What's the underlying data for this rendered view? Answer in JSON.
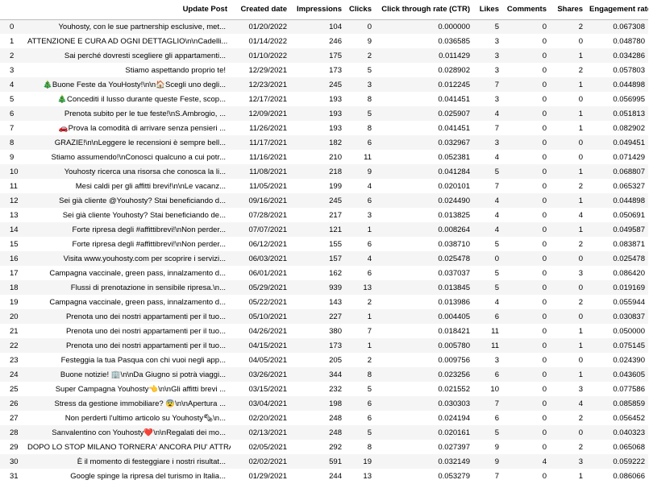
{
  "table": {
    "columns": [
      "",
      "Update Post",
      "Created date",
      "Impressions",
      "Clicks",
      "Click through rate (CTR)",
      "Likes",
      "Comments",
      "Shares",
      "Engagement rate"
    ],
    "rows": [
      [
        "0",
        "Youhosty, con le sue partnership esclusive, met...",
        "01/20/2022",
        "104",
        "0",
        "0.000000",
        "5",
        "0",
        "2",
        "0.067308"
      ],
      [
        "1",
        "ATTENZIONE E CURA AD OGNI DETTAGLIO\\n\\nCadelli...",
        "01/14/2022",
        "246",
        "9",
        "0.036585",
        "3",
        "0",
        "0",
        "0.048780"
      ],
      [
        "2",
        "Sai perché dovresti scegliere gli appartamenti...",
        "01/10/2022",
        "175",
        "2",
        "0.011429",
        "3",
        "0",
        "1",
        "0.034286"
      ],
      [
        "3",
        "Stiamo aspettando proprio te!",
        "12/29/2021",
        "173",
        "5",
        "0.028902",
        "3",
        "0",
        "2",
        "0.057803"
      ],
      [
        "4",
        "🎄Buone Feste da YouHosty!\\n\\n🏠Scegli uno degli...",
        "12/23/2021",
        "245",
        "3",
        "0.012245",
        "7",
        "0",
        "1",
        "0.044898"
      ],
      [
        "5",
        "🎄Concediti il lusso durante queste Feste, scop...",
        "12/17/2021",
        "193",
        "8",
        "0.041451",
        "3",
        "0",
        "0",
        "0.056995"
      ],
      [
        "6",
        "Prenota subito per le tue feste!\\nS.Ambrogio, ...",
        "12/09/2021",
        "193",
        "5",
        "0.025907",
        "4",
        "0",
        "1",
        "0.051813"
      ],
      [
        "7",
        "🚗Prova la comodità di arrivare senza pensieri ...",
        "11/26/2021",
        "193",
        "8",
        "0.041451",
        "7",
        "0",
        "1",
        "0.082902"
      ],
      [
        "8",
        "GRAZIE!\\n\\nLeggere le recensioni è sempre bell...",
        "11/17/2021",
        "182",
        "6",
        "0.032967",
        "3",
        "0",
        "0",
        "0.049451"
      ],
      [
        "9",
        "Stiamo assumendo!\\nConosci qualcuno a cui potr...",
        "11/16/2021",
        "210",
        "11",
        "0.052381",
        "4",
        "0",
        "0",
        "0.071429"
      ],
      [
        "10",
        "Youhosty ricerca una risorsa che conosca la li...",
        "11/08/2021",
        "218",
        "9",
        "0.041284",
        "5",
        "0",
        "1",
        "0.068807"
      ],
      [
        "11",
        "Mesi caldi per gli affitti brevi!\\n\\nLe vacanz...",
        "11/05/2021",
        "199",
        "4",
        "0.020101",
        "7",
        "0",
        "2",
        "0.065327"
      ],
      [
        "12",
        "Sei già cliente @Youhosty? Stai beneficiando d...",
        "09/16/2021",
        "245",
        "6",
        "0.024490",
        "4",
        "0",
        "1",
        "0.044898"
      ],
      [
        "13",
        "Sei già cliente Youhosty? Stai beneficiando de...",
        "07/28/2021",
        "217",
        "3",
        "0.013825",
        "4",
        "0",
        "4",
        "0.050691"
      ],
      [
        "14",
        "Forte ripresa degli #affittibrevi!\\nNon perder...",
        "07/07/2021",
        "121",
        "1",
        "0.008264",
        "4",
        "0",
        "1",
        "0.049587"
      ],
      [
        "15",
        "Forte ripresa degli #affittibrevi!\\nNon perder...",
        "06/12/2021",
        "155",
        "6",
        "0.038710",
        "5",
        "0",
        "2",
        "0.083871"
      ],
      [
        "16",
        "Visita www.youhosty.com per scoprire i servizi...",
        "06/03/2021",
        "157",
        "4",
        "0.025478",
        "0",
        "0",
        "0",
        "0.025478"
      ],
      [
        "17",
        "Campagna vaccinale, green pass, innalzamento d...",
        "06/01/2021",
        "162",
        "6",
        "0.037037",
        "5",
        "0",
        "3",
        "0.086420"
      ],
      [
        "18",
        "Flussi di prenotazione in sensibile ripresa.\\n...",
        "05/29/2021",
        "939",
        "13",
        "0.013845",
        "5",
        "0",
        "0",
        "0.019169"
      ],
      [
        "19",
        "Campagna vaccinale, green pass, innalzamento d...",
        "05/22/2021",
        "143",
        "2",
        "0.013986",
        "4",
        "0",
        "2",
        "0.055944"
      ],
      [
        "20",
        "Prenota uno dei nostri appartamenti per il tuo...",
        "05/10/2021",
        "227",
        "1",
        "0.004405",
        "6",
        "0",
        "0",
        "0.030837"
      ],
      [
        "21",
        "Prenota uno dei nostri appartamenti per il tuo...",
        "04/26/2021",
        "380",
        "7",
        "0.018421",
        "11",
        "0",
        "1",
        "0.050000"
      ],
      [
        "22",
        "Prenota uno dei nostri appartamenti per il tuo...",
        "04/15/2021",
        "173",
        "1",
        "0.005780",
        "11",
        "0",
        "1",
        "0.075145"
      ],
      [
        "23",
        "Festeggia la tua Pasqua con chi vuoi negli app...",
        "04/05/2021",
        "205",
        "2",
        "0.009756",
        "3",
        "0",
        "0",
        "0.024390"
      ],
      [
        "24",
        "Buone notizie! 🏢\\n\\nDa Giugno si potrà viaggi...",
        "03/26/2021",
        "344",
        "8",
        "0.023256",
        "6",
        "0",
        "1",
        "0.043605"
      ],
      [
        "25",
        "Super Campagna Youhosty👈\\n\\nGli affitti brevi ...",
        "03/15/2021",
        "232",
        "5",
        "0.021552",
        "10",
        "0",
        "3",
        "0.077586"
      ],
      [
        "26",
        "Stress da gestione immobiliare? 😨\\n\\nApertura ...",
        "03/04/2021",
        "198",
        "6",
        "0.030303",
        "7",
        "0",
        "4",
        "0.085859"
      ],
      [
        "27",
        "Non perderti l'ultimo articolo su Youhosty🗞\\n...",
        "02/20/2021",
        "248",
        "6",
        "0.024194",
        "6",
        "0",
        "2",
        "0.056452"
      ],
      [
        "28",
        "Sanvalentino con Youhosty❤️\\n\\nRegalati dei mo...",
        "02/13/2021",
        "248",
        "5",
        "0.020161",
        "5",
        "0",
        "0",
        "0.040323"
      ],
      [
        "29",
        "DOPO LO STOP MILANO TORNERA' ANCORA PIU' ATTRA...",
        "02/05/2021",
        "292",
        "8",
        "0.027397",
        "9",
        "0",
        "2",
        "0.065068"
      ],
      [
        "30",
        "È il momento di festeggiare i nostri risultat...",
        "02/02/2021",
        "591",
        "19",
        "0.032149",
        "9",
        "4",
        "3",
        "0.059222"
      ],
      [
        "31",
        "Google spinge la ripresa del turismo in Italia...",
        "01/29/2021",
        "244",
        "13",
        "0.053279",
        "7",
        "0",
        "1",
        "0.086066"
      ]
    ]
  }
}
